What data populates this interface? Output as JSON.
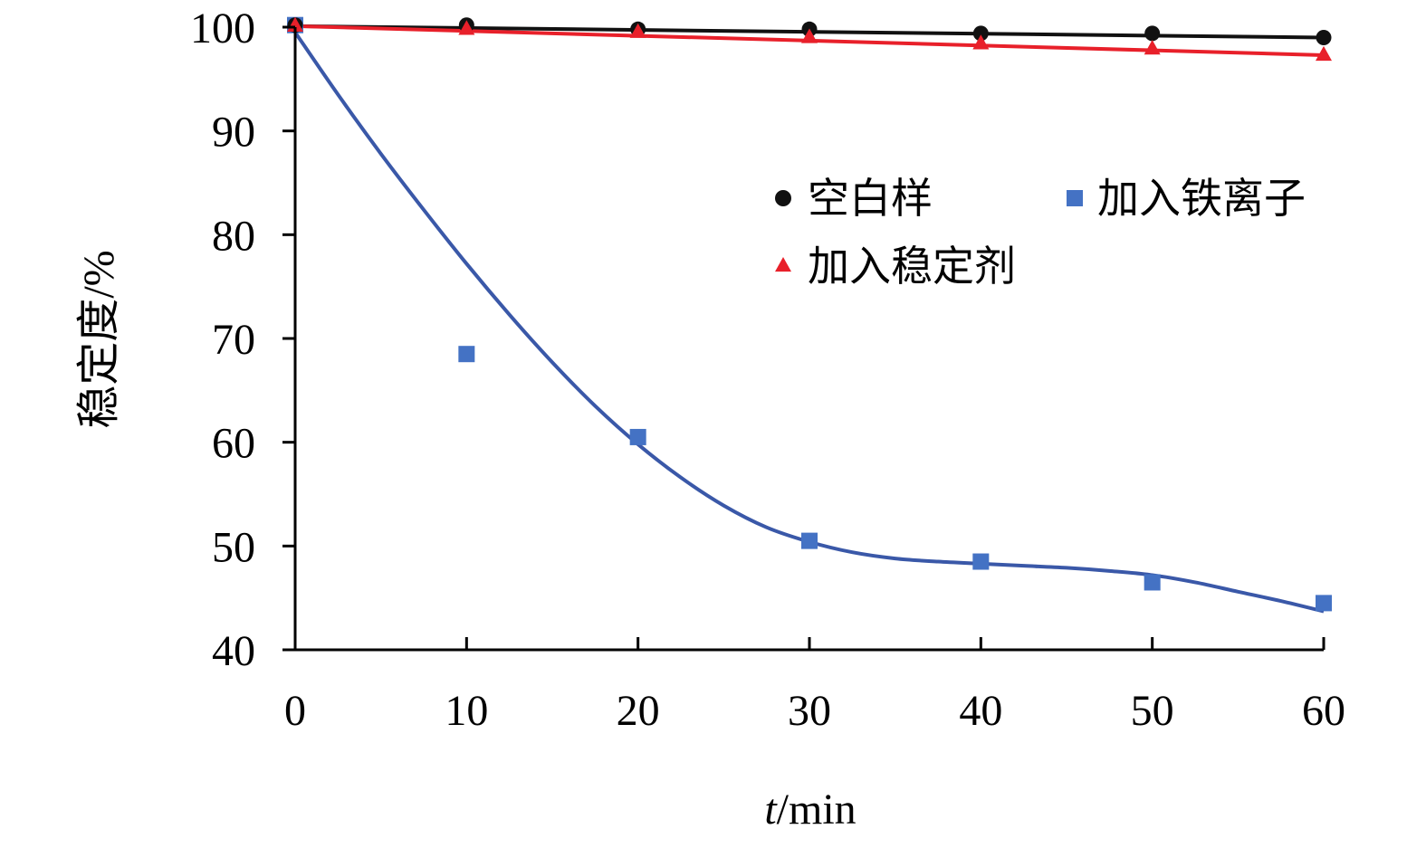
{
  "chart_data": {
    "type": "line",
    "title": "",
    "xlabel": {
      "italic": "t",
      "unit": "/min"
    },
    "ylabel": "稳定度/%",
    "xlim": [
      0,
      60
    ],
    "ylim": [
      40,
      100
    ],
    "x_ticks": [
      0,
      10,
      20,
      30,
      40,
      50,
      60
    ],
    "y_ticks": [
      40,
      50,
      60,
      70,
      80,
      90,
      100
    ],
    "grid": false,
    "legend_position": "upper-right inside plot",
    "series": [
      {
        "name": "空白样",
        "marker": "circle",
        "color": "#111111",
        "x": [
          0,
          10,
          20,
          30,
          40,
          50,
          60
        ],
        "y": [
          100.2,
          100.2,
          99.8,
          99.8,
          99.4,
          99.4,
          99.0
        ],
        "fit_line": [
          [
            0,
            100.1
          ],
          [
            60,
            99.0
          ]
        ]
      },
      {
        "name": "加入铁离子",
        "marker": "square",
        "color": "#4472c4",
        "line_color": "#3a58a8",
        "x": [
          0,
          10,
          20,
          30,
          40,
          50,
          60
        ],
        "y": [
          100.2,
          68.5,
          60.5,
          50.5,
          48.5,
          46.5,
          44.5
        ],
        "fit_curve": [
          [
            0,
            99.5
          ],
          [
            2.5,
            93.5
          ],
          [
            5,
            87.8
          ],
          [
            7.5,
            82.4
          ],
          [
            10,
            77.2
          ],
          [
            12.5,
            72.3
          ],
          [
            15,
            67.7
          ],
          [
            17.5,
            63.5
          ],
          [
            20,
            59.8
          ],
          [
            22.5,
            56.6
          ],
          [
            25,
            53.9
          ],
          [
            27.5,
            51.8
          ],
          [
            30,
            50.4
          ],
          [
            32.5,
            49.4
          ],
          [
            35,
            48.8
          ],
          [
            37.5,
            48.5
          ],
          [
            40,
            48.3
          ],
          [
            42.5,
            48.1
          ],
          [
            45,
            47.9
          ],
          [
            47.5,
            47.6
          ],
          [
            50,
            47.2
          ],
          [
            52.5,
            46.5
          ],
          [
            55,
            45.6
          ],
          [
            57.5,
            44.7
          ],
          [
            60,
            43.7
          ]
        ]
      },
      {
        "name": "加入稳定剂",
        "marker": "triangle",
        "color": "#e8202a",
        "x": [
          0,
          10,
          20,
          30,
          40,
          50,
          60
        ],
        "y": [
          100.1,
          99.8,
          99.5,
          99.0,
          98.4,
          97.9,
          97.3
        ],
        "fit_line": [
          [
            0,
            100.1
          ],
          [
            60,
            97.3
          ]
        ]
      }
    ]
  }
}
